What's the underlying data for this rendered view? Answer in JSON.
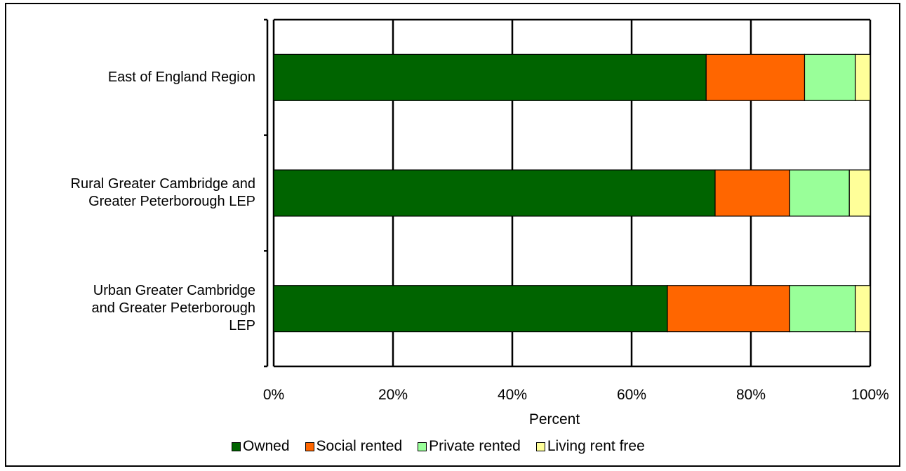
{
  "chart_data": {
    "type": "bar",
    "orientation": "horizontal",
    "stacked": "percent",
    "categories": [
      "East of England Region",
      "Rural Greater Cambridge and Greater Peterborough LEP",
      "Urban Greater Cambridge and Greater Peterborough LEP"
    ],
    "category_lines": [
      [
        "East of England Region"
      ],
      [
        "Rural Greater Cambridge and",
        "Greater Peterborough LEP"
      ],
      [
        "Urban Greater Cambridge",
        "and Greater Peterborough",
        "LEP"
      ]
    ],
    "series": [
      {
        "name": "Owned",
        "color": "#006400",
        "values": [
          72.5,
          74.0,
          66.0
        ]
      },
      {
        "name": "Social rented",
        "color": "#FF6600",
        "values": [
          16.5,
          12.5,
          20.5
        ]
      },
      {
        "name": "Private rented",
        "color": "#99FF99",
        "values": [
          8.5,
          10.0,
          11.0
        ]
      },
      {
        "name": "Living rent free",
        "color": "#FFFF99",
        "values": [
          2.5,
          3.5,
          2.5
        ]
      }
    ],
    "xlabel": "Percent",
    "xlim": [
      0,
      100
    ],
    "xticks": [
      "0%",
      "20%",
      "40%",
      "60%",
      "80%",
      "100%"
    ],
    "grid": true,
    "legend_position": "bottom"
  }
}
